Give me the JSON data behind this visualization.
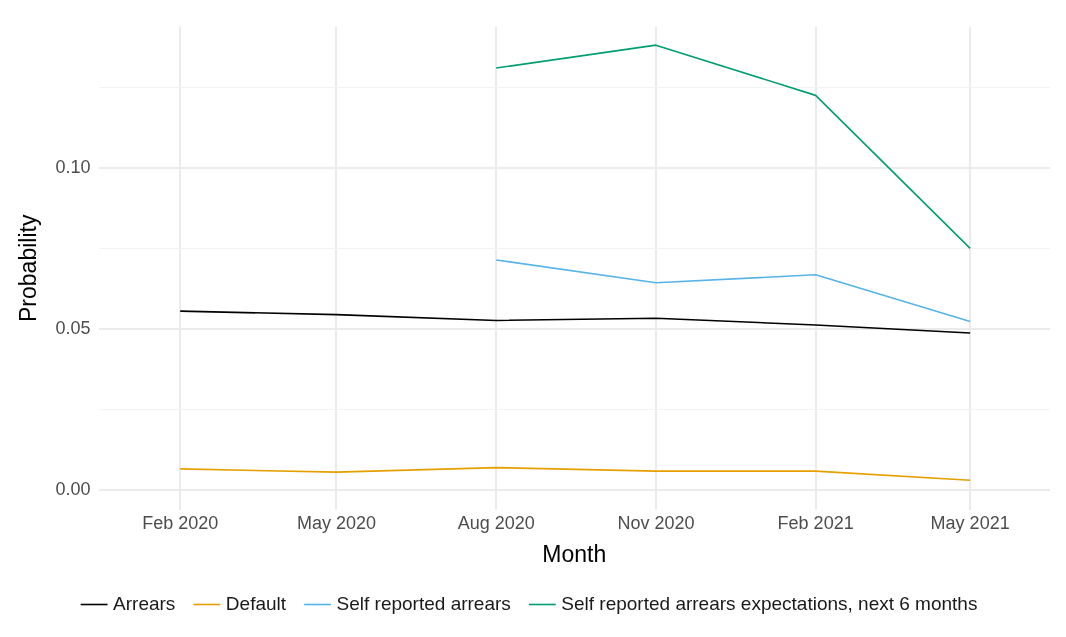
{
  "chart_data": {
    "type": "line",
    "xlabel": "Month",
    "ylabel": "Probability",
    "x": [
      "2020-02",
      "2020-05",
      "2020-08",
      "2020-11",
      "2021-02",
      "2021-05"
    ],
    "series": [
      {
        "name": "Arrears",
        "color": "#000000",
        "values": [
          0.0557,
          0.0546,
          0.0528,
          0.0535,
          0.0514,
          0.0489
        ]
      },
      {
        "name": "Default",
        "color": "#e69f00",
        "values": [
          0.0067,
          0.0057,
          0.0071,
          0.006,
          0.006,
          0.0032
        ]
      },
      {
        "name": "Self reported arrears",
        "color": "#56b4e9",
        "values": [
          null,
          null,
          0.0716,
          0.0645,
          0.067,
          0.0525
        ]
      },
      {
        "name": "Self reported arrears expectations, next 6 months",
        "color": "#009e73",
        "values": [
          null,
          null,
          0.1312,
          0.1383,
          0.1227,
          0.0752
        ]
      }
    ],
    "xlim": [
      "2019-12-16",
      "2021-06-16"
    ],
    "xticks": [
      {
        "value": "2020-02",
        "label": "Feb 2020"
      },
      {
        "value": "2020-05",
        "label": "May 2020"
      },
      {
        "value": "2020-08",
        "label": "Aug 2020"
      },
      {
        "value": "2020-11",
        "label": "Nov 2020"
      },
      {
        "value": "2021-02",
        "label": "Feb 2021"
      },
      {
        "value": "2021-05",
        "label": "May 2021"
      }
    ],
    "ylim": [
      -0.006,
      0.144
    ],
    "yticks": [
      {
        "value": 0,
        "label": "0.00"
      },
      {
        "value": 0.025,
        "label": null
      },
      {
        "value": 0.05,
        "label": "0.05"
      },
      {
        "value": 0.075,
        "label": null
      },
      {
        "value": 0.1,
        "label": "0.10"
      },
      {
        "value": 0.125,
        "label": null
      }
    ],
    "grid": true,
    "legend": "bottom",
    "line_style": "solid",
    "marker": "none"
  }
}
